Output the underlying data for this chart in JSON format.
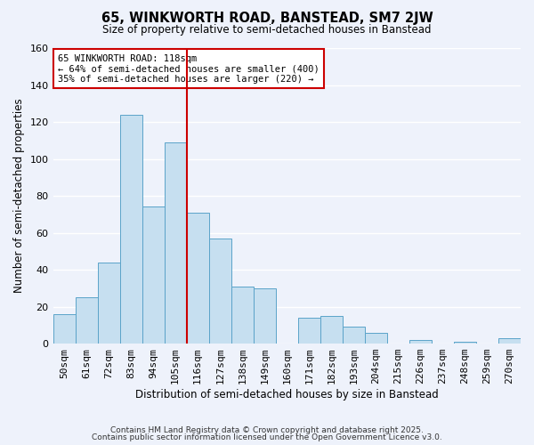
{
  "title": "65, WINKWORTH ROAD, BANSTEAD, SM7 2JW",
  "subtitle": "Size of property relative to semi-detached houses in Banstead",
  "xlabel": "Distribution of semi-detached houses by size in Banstead",
  "ylabel": "Number of semi-detached properties",
  "bar_labels": [
    "50sqm",
    "61sqm",
    "72sqm",
    "83sqm",
    "94sqm",
    "105sqm",
    "116sqm",
    "127sqm",
    "138sqm",
    "149sqm",
    "160sqm",
    "171sqm",
    "182sqm",
    "193sqm",
    "204sqm",
    "215sqm",
    "226sqm",
    "237sqm",
    "248sqm",
    "259sqm",
    "270sqm"
  ],
  "bar_values": [
    16,
    25,
    44,
    124,
    74,
    109,
    71,
    57,
    31,
    30,
    0,
    14,
    15,
    9,
    6,
    0,
    2,
    0,
    1,
    0,
    3
  ],
  "bar_color": "#c6dff0",
  "bar_edge_color": "#5ba3c9",
  "vline_color": "#cc0000",
  "vline_index": 5.5,
  "annotation_title": "65 WINKWORTH ROAD: 118sqm",
  "annotation_line1": "← 64% of semi-detached houses are smaller (400)",
  "annotation_line2": "35% of semi-detached houses are larger (220) →",
  "annotation_box_color": "#ffffff",
  "annotation_box_edge": "#cc0000",
  "ylim": [
    0,
    160
  ],
  "yticks": [
    0,
    20,
    40,
    60,
    80,
    100,
    120,
    140,
    160
  ],
  "footer1": "Contains HM Land Registry data © Crown copyright and database right 2025.",
  "footer2": "Contains public sector information licensed under the Open Government Licence v3.0.",
  "bg_color": "#eef2fb",
  "grid_color": "#ffffff"
}
